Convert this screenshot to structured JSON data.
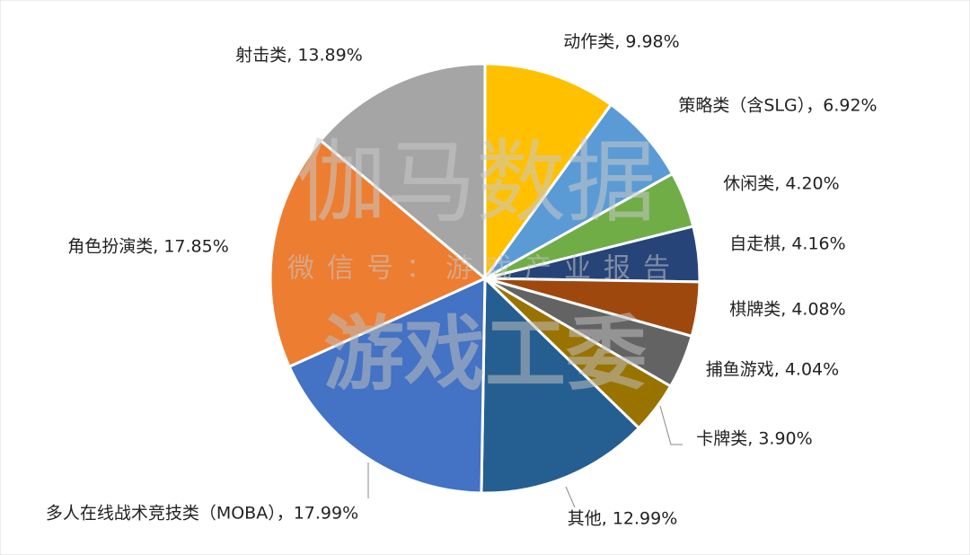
{
  "chart_data": {
    "type": "pie",
    "categories": [
      "动作类, 9.98%",
      "策略类（含SLG），6.92%",
      "休闲类, 4.20%",
      "自走棋, 4.16%",
      "棋牌类, 4.08%",
      "捕鱼游戏, 4.04%",
      "卡牌类, 3.90%",
      "其他, 12.99%",
      "多人在线战术竞技类（MOBA），17.99%",
      "角色扮演类, 17.85%",
      "射击类, 13.89%"
    ],
    "values": [
      9.98,
      6.92,
      4.2,
      4.16,
      4.08,
      4.04,
      3.9,
      12.99,
      17.99,
      17.85,
      13.89
    ],
    "colors": [
      "#FFC000",
      "#5B9BD5",
      "#70AD47",
      "#264478",
      "#9E480E",
      "#636363",
      "#997300",
      "#255E91",
      "#4472C4",
      "#ED7D31",
      "#A5A5A5"
    ],
    "watermarks": [
      "伽马数据",
      "微信号：游戏产业报告",
      "游戏工委"
    ]
  }
}
